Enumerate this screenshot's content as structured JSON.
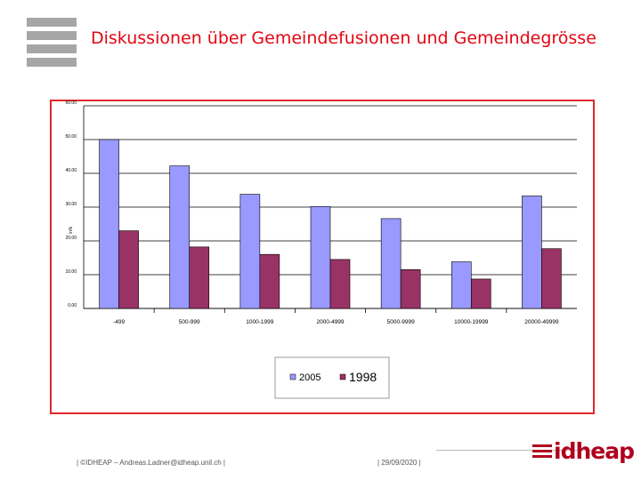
{
  "slide": {
    "title": "Diskussionen über Gemeindefusionen und Gemeindegrösse"
  },
  "footer": {
    "copyright": "| ©IDHEAP – Andreas.Ladner@idheap.unil.ch |",
    "date": "| 29/09/2020 |",
    "brand": "idheap"
  },
  "colors": {
    "title": "#e30613",
    "frame": "#e0282a",
    "series_2005": "#9999ff",
    "series_1998": "#993366"
  },
  "chart_data": {
    "type": "bar",
    "title": "",
    "xlabel": "",
    "ylabel": "in%",
    "ylim": [
      0,
      60
    ],
    "yticks": [
      "0.00",
      "10.00",
      "20.00",
      "30.00",
      "40.00",
      "50.00",
      "60.00"
    ],
    "grid": true,
    "legend": "bottom-center",
    "categories": [
      "-499",
      "500-999",
      "1000-1999",
      "2000-4999",
      "5000-9999",
      "10000-19999",
      "20000-49999"
    ],
    "series": [
      {
        "name": "2005",
        "values": [
          50.0,
          42.2,
          33.8,
          30.2,
          26.6,
          13.8,
          33.3
        ]
      },
      {
        "name": "1998",
        "values": [
          23.0,
          18.2,
          16.0,
          14.5,
          11.5,
          8.7,
          17.7
        ]
      }
    ]
  }
}
